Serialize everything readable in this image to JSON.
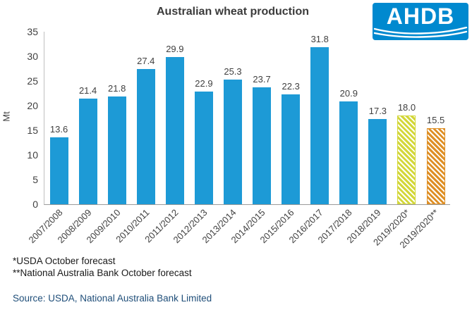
{
  "title": "Australian wheat production",
  "logo": {
    "text": "AHDB",
    "background": "#0089cf"
  },
  "chart_data": {
    "type": "bar",
    "title": "Australian wheat production",
    "xlabel": "",
    "ylabel": "Mt",
    "ylim": [
      0,
      35
    ],
    "yticks": [
      0,
      5,
      10,
      15,
      20,
      25,
      30,
      35
    ],
    "grid": false,
    "legend": "none",
    "categories": [
      "2007/2008",
      "2008/2009",
      "2009/2010",
      "2010/2011",
      "2011/2012",
      "2012/2013",
      "2013/2014",
      "2014/2015",
      "2015/2016",
      "2016/2017",
      "2017/2018",
      "2018/2019",
      "2019/2020*",
      "2019/2020**"
    ],
    "values": [
      13.6,
      21.4,
      21.8,
      27.4,
      29.9,
      22.9,
      25.3,
      23.7,
      22.3,
      31.8,
      20.9,
      17.3,
      18.0,
      15.5
    ],
    "value_labels": [
      "13.6",
      "21.4",
      "21.8",
      "27.4",
      "29.9",
      "22.9",
      "25.3",
      "23.7",
      "22.3",
      "31.8",
      "20.9",
      "17.3",
      "18.0",
      "15.5"
    ],
    "bar_styles": [
      "solid",
      "solid",
      "solid",
      "solid",
      "solid",
      "solid",
      "solid",
      "solid",
      "solid",
      "solid",
      "solid",
      "solid",
      "hatch_yellow",
      "hatch_orange"
    ],
    "colors": {
      "bar": "#1d9ad6",
      "forecast_usda": "#d3d73a",
      "forecast_nab": "#de8f25"
    }
  },
  "footnotes": [
    "*USDA October forecast",
    "**National Australia Bank October forecast"
  ],
  "source": "Source: USDA, National Australia Bank Limited"
}
